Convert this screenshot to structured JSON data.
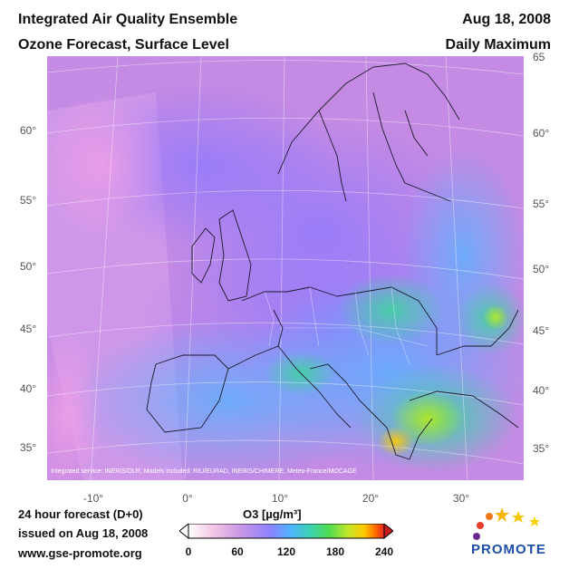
{
  "header": {
    "title_line1": "Integrated Air Quality Ensemble",
    "title_line2": "Ozone Forecast, Surface Level",
    "date": "Aug 18, 2008",
    "statistic": "Daily Maximum"
  },
  "map": {
    "region": "Europe",
    "projection": "polar-stereographic",
    "left_lat_labels": [
      "60°",
      "55°",
      "50°",
      "45°",
      "40°",
      "35°"
    ],
    "right_lat_labels": [
      "65",
      "60°",
      "55°",
      "50°",
      "45°",
      "40°",
      "35°"
    ],
    "lon_labels": [
      "-10°",
      "0°",
      "10°",
      "20°",
      "30°"
    ],
    "credit": "Integrated service: INERIS/DLR; Models included: RIU/EURAD, INERIS/CHIMERE, Meteo-France/MOCAGE",
    "background_color": "#c88ee6",
    "high_ozone_regions": [
      "Greece",
      "Aegean Sea",
      "Romania",
      "Black Sea coast"
    ]
  },
  "colorbar": {
    "title": "O3 [µg/m³]",
    "ticks": [
      "0",
      "60",
      "120",
      "180",
      "240"
    ],
    "min": 0,
    "max": 240,
    "colors": [
      "#ffffff",
      "#f5c8e6",
      "#c896e6",
      "#8c82ff",
      "#50b4ff",
      "#3cd2b4",
      "#50dc50",
      "#c8e628",
      "#ffc800",
      "#ff6400",
      "#e62828"
    ]
  },
  "footer": {
    "forecast": "24 hour forecast (D+0)",
    "issued": "issued on Aug 18, 2008",
    "website": "www.gse-promote.org"
  },
  "logo": {
    "text": "PROMOTE"
  }
}
